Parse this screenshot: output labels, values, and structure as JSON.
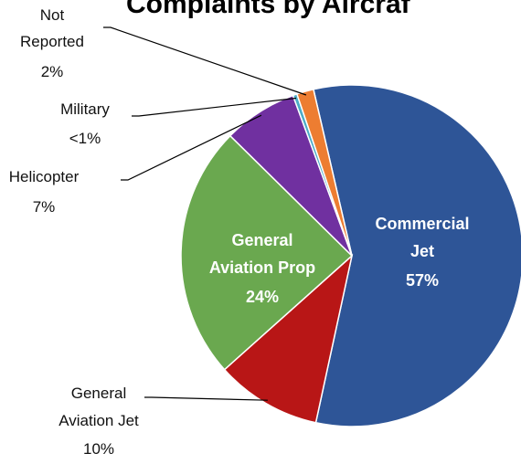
{
  "chart_data": {
    "type": "pie",
    "title": "Complaints by Aircraf",
    "slices": [
      {
        "label_lines": [
          "Commercial",
          "Jet"
        ],
        "pct_label": "57%",
        "value": 57,
        "color": "#2E5597"
      },
      {
        "label_lines": [
          "General",
          "Aviation Jet"
        ],
        "pct_label": "10%",
        "value": 10,
        "color": "#B81616"
      },
      {
        "label_lines": [
          "General",
          "Aviation Prop"
        ],
        "pct_label": "24%",
        "value": 24,
        "color": "#6AA84F"
      },
      {
        "label_lines": [
          "Helicopter"
        ],
        "pct_label": "7%",
        "value": 7,
        "color": "#7030A0"
      },
      {
        "label_lines": [
          "Military"
        ],
        "pct_label": "<1%",
        "value": 0.4,
        "color": "#4BACC6"
      },
      {
        "label_lines": [
          "Not",
          "Reported"
        ],
        "pct_label": "2%",
        "value": 1.6,
        "color": "#ED7D31"
      }
    ]
  }
}
